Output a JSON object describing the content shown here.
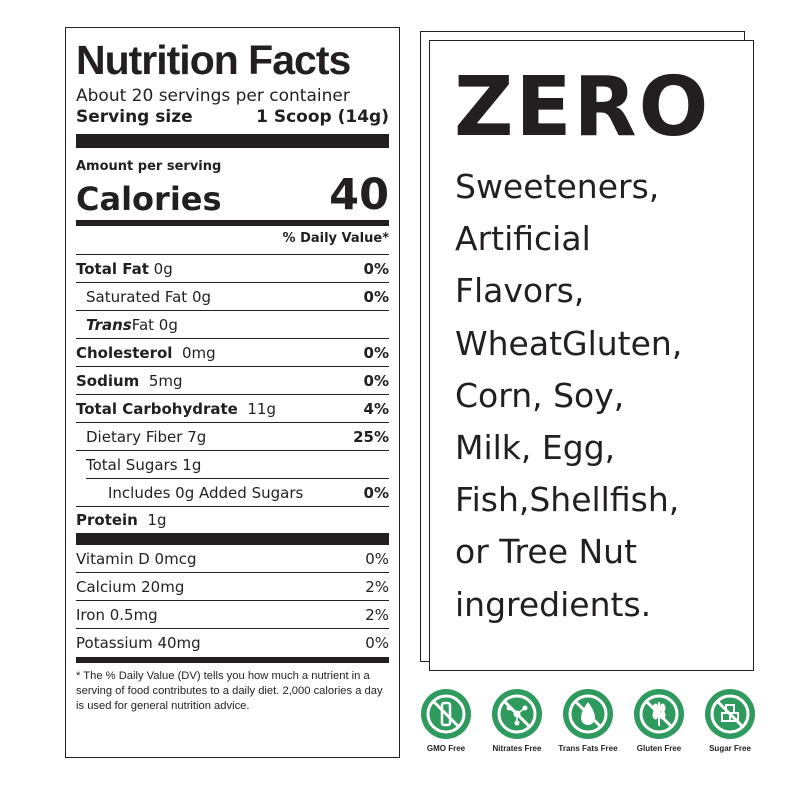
{
  "nutrition": {
    "title": "Nutrition Facts",
    "servings_per_container": "About 20 servings per container",
    "serving_size_label": "Serving size",
    "serving_size_value": "1 Scoop (14g)",
    "amount_per_serving": "Amount per serving",
    "calories_label": "Calories",
    "calories_value": "40",
    "dv_header": "% Daily Value*",
    "nutrients": [
      {
        "label": "Total Fat",
        "amount": "0g",
        "dv": "0%"
      },
      {
        "label": "Saturated Fat 0g",
        "amount": "",
        "dv": "0%"
      },
      {
        "label": "Trans",
        "amount": "Fat 0g",
        "dv": ""
      },
      {
        "label": "Cholesterol",
        "amount": "0mg",
        "dv": "0%"
      },
      {
        "label": "Sodium",
        "amount": "5mg",
        "dv": "0%"
      },
      {
        "label": "Total Carbohydrate",
        "amount": "11g",
        "dv": "4%"
      },
      {
        "label": "Dietary Fiber 7g",
        "amount": "",
        "dv": "25%"
      },
      {
        "label": "Total Sugars 1g",
        "amount": "",
        "dv": ""
      },
      {
        "label": "Includes 0g Added Sugars",
        "amount": "",
        "dv": "0%"
      },
      {
        "label": "Protein",
        "amount": "1g",
        "dv": ""
      }
    ],
    "vitamins": [
      {
        "label": "Vitamin D 0mcg",
        "dv": "0%"
      },
      {
        "label": "Calcium 20mg",
        "dv": "2%"
      },
      {
        "label": "Iron 0.5mg",
        "dv": "2%"
      },
      {
        "label": "Potassium 40mg",
        "dv": "0%"
      }
    ],
    "footnote": "* The % Daily Value (DV) tells you how much a nutrient in a serving of food contributes to a daily diet. 2,000 calories a day is used for general nutrition advice."
  },
  "zero": {
    "title": "ZERO",
    "lines": [
      "Sweeteners,",
      "Artificial",
      "Flavors,",
      "WheatGluten,",
      "Corn, Soy,",
      "Milk, Egg,",
      "Fish,Shellfish,",
      "or Tree Nut",
      "ingredients."
    ]
  },
  "badges": [
    {
      "label": "GMO Free",
      "icon": "gmo-free-icon"
    },
    {
      "label": "Nitrates Free",
      "icon": "nitrates-free-icon"
    },
    {
      "label": "Trans Fats Free",
      "icon": "trans-fats-free-icon"
    },
    {
      "label": "Gluten Free",
      "icon": "gluten-free-icon"
    },
    {
      "label": "Sugar Free",
      "icon": "sugar-free-icon"
    }
  ],
  "colors": {
    "text": "#231f20",
    "badge_green": "#2e9a5e"
  }
}
